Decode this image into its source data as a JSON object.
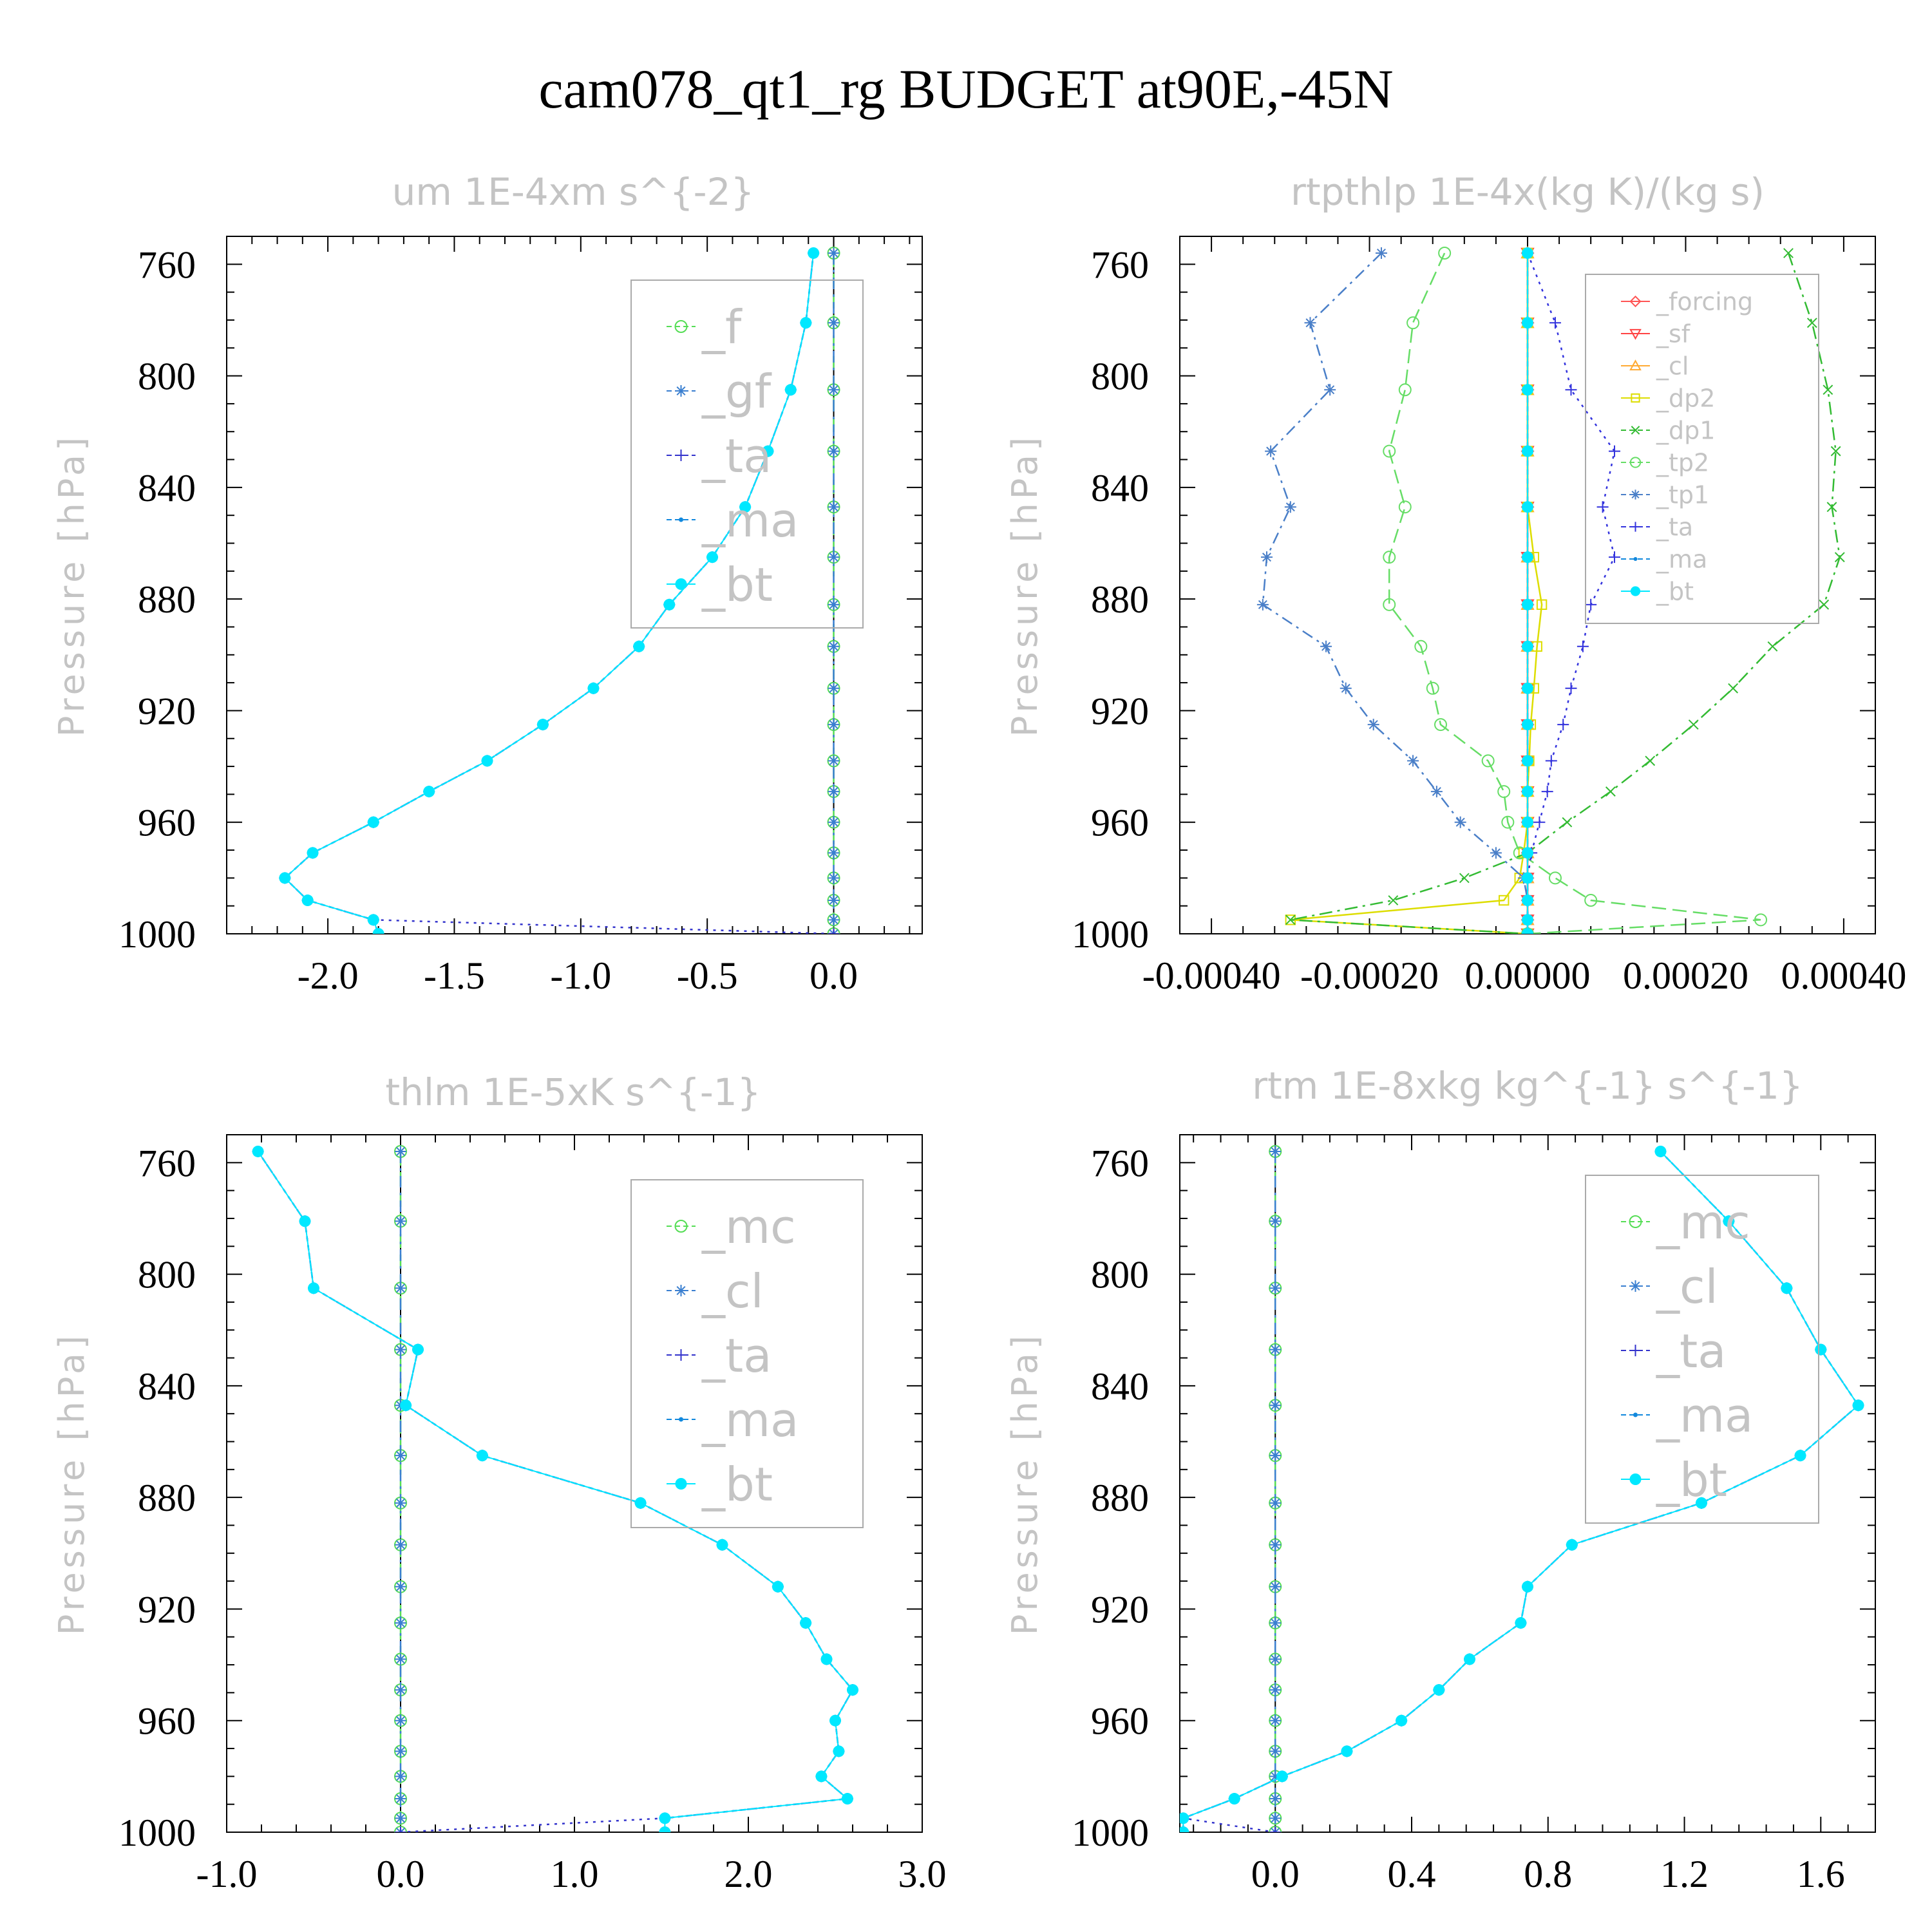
{
  "title": "cam078_qt1_rg  BUDGET at90E,-45N",
  "chart_data": [
    {
      "type": "line",
      "title": "um   1E-4xm s^{-2}",
      "ylabel": "Pressure [hPa]",
      "xlim": [
        -2.4,
        0.35
      ],
      "ylim": [
        1000,
        750
      ],
      "xticks": [
        "-2.0",
        "-1.5",
        "-1.0",
        "-0.5",
        "0.0"
      ],
      "xtick_values": [
        -2.0,
        -1.5,
        -1.0,
        -0.5,
        0.0
      ],
      "yticks": [
        "760",
        "800",
        "840",
        "880",
        "920",
        "960",
        "1000"
      ],
      "ytick_values": [
        760,
        800,
        840,
        880,
        920,
        960,
        1000
      ],
      "legend_position": "top-right",
      "levels": [
        756,
        781,
        805,
        827,
        847,
        865,
        882,
        897,
        912,
        925,
        938,
        949,
        960,
        971,
        980,
        988,
        995,
        1000
      ],
      "series": [
        {
          "name": "_f",
          "color": "#55dd55",
          "marker": "circle",
          "values": [
            0,
            0,
            0,
            0,
            0,
            0,
            0,
            0,
            0,
            0,
            0,
            0,
            0,
            0,
            0,
            0,
            0,
            0
          ]
        },
        {
          "name": "_gf",
          "color": "#3a7fd0",
          "marker": "star",
          "values": [
            0,
            0,
            0,
            0,
            0,
            0,
            0,
            0,
            0,
            0,
            0,
            0,
            0,
            0,
            0,
            0,
            0,
            0
          ]
        },
        {
          "name": "_ta",
          "color": "#3333cc",
          "marker": "plus",
          "values": [
            -0.08,
            -0.11,
            -0.17,
            -0.26,
            -0.35,
            -0.48,
            -0.65,
            -0.77,
            -0.95,
            -1.15,
            -1.37,
            -1.6,
            -1.82,
            -2.06,
            -2.17,
            -2.08,
            -1.82,
            0
          ]
        },
        {
          "name": "_ma",
          "color": "#1188dd",
          "marker": "dot",
          "values": [
            -0.08,
            -0.11,
            -0.17,
            -0.26,
            -0.35,
            -0.48,
            -0.65,
            -0.77,
            -0.95,
            -1.15,
            -1.37,
            -1.6,
            -1.82,
            -2.06,
            -2.17,
            -2.08,
            -1.82,
            -1.8
          ]
        },
        {
          "name": "_bt",
          "color": "#00e8ff",
          "marker": "bigdot",
          "values": [
            -0.08,
            -0.11,
            -0.17,
            -0.26,
            -0.35,
            -0.48,
            -0.65,
            -0.77,
            -0.95,
            -1.15,
            -1.37,
            -1.6,
            -1.82,
            -2.06,
            -2.17,
            -2.08,
            -1.82,
            -1.8
          ]
        }
      ]
    },
    {
      "type": "line",
      "title": "rtpthlp   1E-4x(kg K)/(kg s)",
      "ylabel": "Pressure [hPa]",
      "xlim": [
        -0.00044,
        0.00044
      ],
      "ylim": [
        1000,
        750
      ],
      "xticks": [
        "-0.00040",
        "-0.00020",
        "0.00000",
        "0.00020",
        "0.00040"
      ],
      "xtick_values": [
        -0.0004,
        -0.0002,
        0.0,
        0.0002,
        0.0004
      ],
      "yticks": [
        "760",
        "800",
        "840",
        "880",
        "920",
        "960",
        "1000"
      ],
      "ytick_values": [
        760,
        800,
        840,
        880,
        920,
        960,
        1000
      ],
      "legend_position": "top-right",
      "levels": [
        756,
        781,
        805,
        827,
        847,
        865,
        882,
        897,
        912,
        925,
        938,
        949,
        960,
        971,
        980,
        988,
        995,
        1000
      ],
      "series": [
        {
          "name": "_forcing",
          "color": "#ff5555",
          "marker": "diamond",
          "values": [
            0,
            0,
            0,
            0,
            0,
            0,
            0,
            0,
            0,
            0,
            0,
            0,
            0,
            0,
            0,
            0,
            0,
            0
          ]
        },
        {
          "name": "_sf",
          "color": "#ff4444",
          "marker": "triangle-down",
          "values": [
            0,
            0,
            0,
            0,
            0,
            0,
            0,
            0,
            0,
            0,
            0,
            0,
            0,
            0,
            0,
            0,
            0,
            0
          ]
        },
        {
          "name": "_cl",
          "color": "#ffaa33",
          "marker": "triangle",
          "values": [
            0,
            0,
            0,
            0,
            0,
            0,
            0,
            0,
            0,
            0,
            0,
            0,
            0,
            0,
            0,
            0,
            0,
            0
          ]
        },
        {
          "name": "_dp2",
          "color": "#dddd00",
          "marker": "square",
          "values": [
            0,
            0,
            0,
            0,
            0,
            8e-06,
            1.8e-05,
            1.2e-05,
            8e-06,
            4e-06,
            2e-06,
            0.0,
            0.0,
            -5e-06,
            -1e-05,
            -3e-05,
            -0.0003,
            0
          ]
        },
        {
          "name": "_dp1",
          "color": "#33bb33",
          "marker": "cross",
          "values": [
            0.00033,
            0.00036,
            0.00038,
            0.00039,
            0.000385,
            0.000395,
            0.000375,
            0.00031,
            0.00026,
            0.00021,
            0.000155,
            0.000105,
            5e-05,
            0.0,
            -8e-05,
            -0.00017,
            -0.0003,
            0
          ]
        },
        {
          "name": "_tp2",
          "color": "#66dd66",
          "marker": "circle",
          "values": [
            -0.000105,
            -0.000145,
            -0.000155,
            -0.000175,
            -0.000155,
            -0.000175,
            -0.000175,
            -0.000135,
            -0.00012,
            -0.00011,
            -5e-05,
            -3e-05,
            -2.5e-05,
            -1e-05,
            3.5e-05,
            8e-05,
            0.000295,
            0
          ]
        },
        {
          "name": "_tp1",
          "color": "#4a7fc8",
          "marker": "star",
          "values": [
            -0.000185,
            -0.000275,
            -0.00025,
            -0.000325,
            -0.0003,
            -0.00033,
            -0.000335,
            -0.000255,
            -0.00023,
            -0.000195,
            -0.000145,
            -0.000115,
            -8.5e-05,
            -4e-05,
            -5e-06,
            0.0,
            0.0,
            0
          ]
        },
        {
          "name": "_ta",
          "color": "#3333dd",
          "marker": "plus",
          "values": [
            0.0,
            3.5e-05,
            5.5e-05,
            0.00011,
            9.5e-05,
            0.00011,
            8e-05,
            7e-05,
            5.5e-05,
            4.5e-05,
            3e-05,
            2.5e-05,
            1.5e-05,
            5e-06,
            0.0,
            0.0,
            0.0,
            0
          ]
        },
        {
          "name": "_ma",
          "color": "#1188dd",
          "marker": "dot",
          "values": [
            0,
            0,
            0,
            0,
            0,
            0,
            0,
            0,
            0,
            0,
            0,
            0,
            0,
            0,
            0,
            0,
            0,
            0
          ]
        },
        {
          "name": "_bt",
          "color": "#00e8ff",
          "marker": "bigdot",
          "values": [
            0,
            0,
            0,
            0,
            0,
            0,
            0,
            0,
            0,
            0,
            0,
            0,
            0,
            0,
            0,
            0,
            0,
            0
          ]
        }
      ]
    },
    {
      "type": "line",
      "title": "thlm   1E-5xK s^{-1}",
      "ylabel": "Pressure [hPa]",
      "xlim": [
        -1.0,
        3.0
      ],
      "ylim": [
        1000,
        750
      ],
      "xticks": [
        "-1.0",
        "0.0",
        "1.0",
        "2.0",
        "3.0"
      ],
      "xtick_values": [
        -1.0,
        0.0,
        1.0,
        2.0,
        3.0
      ],
      "yticks": [
        "760",
        "800",
        "840",
        "880",
        "920",
        "960",
        "1000"
      ],
      "ytick_values": [
        760,
        800,
        840,
        880,
        920,
        960,
        1000
      ],
      "legend_position": "top-right",
      "levels": [
        756,
        781,
        805,
        827,
        847,
        865,
        882,
        897,
        912,
        925,
        938,
        949,
        960,
        971,
        980,
        988,
        995,
        1000
      ],
      "series": [
        {
          "name": "_mc",
          "color": "#55dd55",
          "marker": "circle",
          "values": [
            0,
            0,
            0,
            0,
            0,
            0,
            0,
            0,
            0,
            0,
            0,
            0,
            0,
            0,
            0,
            0,
            0,
            0
          ]
        },
        {
          "name": "_cl",
          "color": "#3a7fd0",
          "marker": "star",
          "values": [
            0,
            0,
            0,
            0,
            0,
            0,
            0,
            0,
            0,
            0,
            0,
            0,
            0,
            0,
            0,
            0,
            0,
            0
          ]
        },
        {
          "name": "_ta",
          "color": "#3333cc",
          "marker": "plus",
          "values": [
            -0.82,
            -0.55,
            -0.5,
            0.1,
            0.03,
            0.47,
            1.38,
            1.85,
            2.17,
            2.33,
            2.45,
            2.6,
            2.5,
            2.52,
            2.42,
            2.57,
            1.52,
            0
          ]
        },
        {
          "name": "_ma",
          "color": "#1188dd",
          "marker": "dot",
          "values": [
            -0.82,
            -0.55,
            -0.5,
            0.1,
            0.03,
            0.47,
            1.38,
            1.85,
            2.17,
            2.33,
            2.45,
            2.6,
            2.5,
            2.52,
            2.42,
            2.57,
            1.52,
            1.52
          ]
        },
        {
          "name": "_bt",
          "color": "#00e8ff",
          "marker": "bigdot",
          "values": [
            -0.82,
            -0.55,
            -0.5,
            0.1,
            0.03,
            0.47,
            1.38,
            1.85,
            2.17,
            2.33,
            2.45,
            2.6,
            2.5,
            2.52,
            2.42,
            2.57,
            1.52,
            1.52
          ]
        }
      ]
    },
    {
      "type": "line",
      "title": "rtm   1E-8xkg kg^{-1} s^{-1}",
      "ylabel": "Pressure [hPa]",
      "xlim": [
        -0.28,
        1.76
      ],
      "ylim": [
        1000,
        750
      ],
      "xticks": [
        "0.0",
        "0.4",
        "0.8",
        "1.2",
        "1.6"
      ],
      "xtick_values": [
        0.0,
        0.4,
        0.8,
        1.2,
        1.6
      ],
      "yticks": [
        "760",
        "800",
        "840",
        "880",
        "920",
        "960",
        "1000"
      ],
      "ytick_values": [
        760,
        800,
        840,
        880,
        920,
        960,
        1000
      ],
      "legend_position": "top-right",
      "levels": [
        756,
        781,
        805,
        827,
        847,
        865,
        882,
        897,
        912,
        925,
        938,
        949,
        960,
        971,
        980,
        988,
        995,
        1000
      ],
      "series": [
        {
          "name": "_mc",
          "color": "#55dd55",
          "marker": "circle",
          "values": [
            0,
            0,
            0,
            0,
            0,
            0,
            0,
            0,
            0,
            0,
            0,
            0,
            0,
            0,
            0,
            0,
            0,
            0
          ]
        },
        {
          "name": "_cl",
          "color": "#3a7fd0",
          "marker": "star",
          "values": [
            0,
            0,
            0,
            0,
            0,
            0,
            0,
            0,
            0,
            0,
            0,
            0,
            0,
            0,
            0,
            0,
            0,
            0
          ]
        },
        {
          "name": "_ta",
          "color": "#3333cc",
          "marker": "plus",
          "values": [
            1.13,
            1.33,
            1.5,
            1.6,
            1.71,
            1.54,
            1.25,
            0.87,
            0.74,
            0.72,
            0.57,
            0.48,
            0.37,
            0.21,
            0.02,
            -0.12,
            -0.27,
            0
          ]
        },
        {
          "name": "_ma",
          "color": "#1188dd",
          "marker": "dot",
          "values": [
            1.13,
            1.33,
            1.5,
            1.6,
            1.71,
            1.54,
            1.25,
            0.87,
            0.74,
            0.72,
            0.57,
            0.48,
            0.37,
            0.21,
            0.02,
            -0.12,
            -0.27,
            -0.27
          ]
        },
        {
          "name": "_bt",
          "color": "#00e8ff",
          "marker": "bigdot",
          "values": [
            1.13,
            1.33,
            1.5,
            1.6,
            1.71,
            1.54,
            1.25,
            0.87,
            0.74,
            0.72,
            0.57,
            0.48,
            0.37,
            0.21,
            0.02,
            -0.12,
            -0.27,
            -0.27
          ]
        }
      ]
    }
  ]
}
